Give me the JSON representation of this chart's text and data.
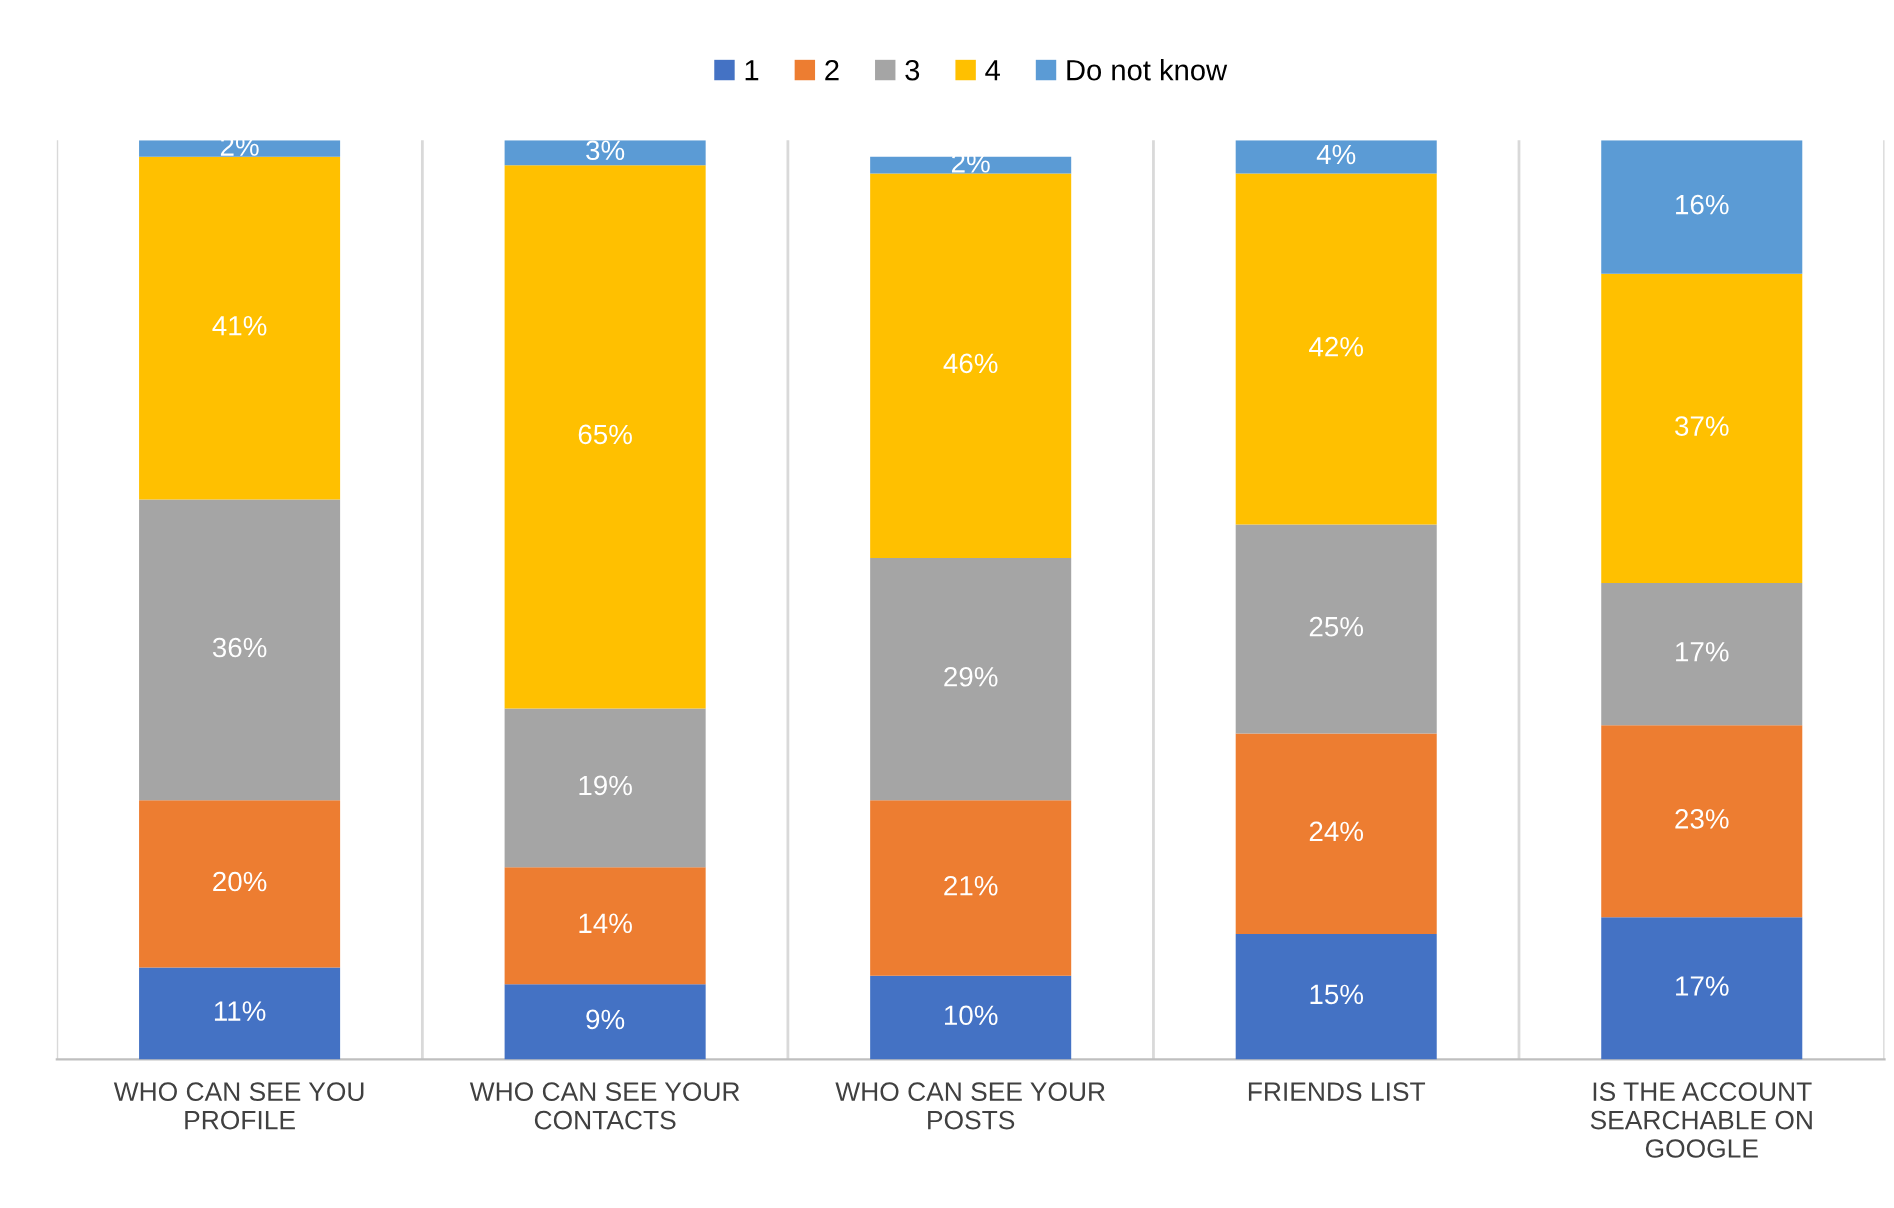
{
  "chart_data": {
    "type": "bar",
    "stacked": true,
    "categories": [
      "WHO CAN SEE YOU\nPROFILE",
      "WHO CAN SEE YOUR\nCONTACTS",
      "WHO CAN SEE YOUR\nPOSTS",
      "FRIENDS LIST",
      "IS THE ACCOUNT\nSEARCHABLE ON\nGOOGLE"
    ],
    "series": [
      {
        "name": "1",
        "color": "#4472c4",
        "values": [
          11,
          9,
          10,
          15,
          17
        ],
        "value_labels": [
          "11%",
          "9%",
          "10%",
          "15%",
          "17%"
        ]
      },
      {
        "name": "2",
        "color": "#ed7d31",
        "values": [
          20,
          14,
          21,
          24,
          23
        ],
        "value_labels": [
          "20%",
          "14%",
          "21%",
          "24%",
          "23%"
        ]
      },
      {
        "name": "3",
        "color": "#a5a5a5",
        "values": [
          36,
          19,
          29,
          25,
          17
        ],
        "value_labels": [
          "36%",
          "19%",
          "29%",
          "25%",
          "17%"
        ]
      },
      {
        "name": "4",
        "color": "#ffc000",
        "values": [
          41,
          65,
          46,
          42,
          37
        ],
        "value_labels": [
          "41%",
          "65%",
          "46%",
          "42%",
          "37%"
        ]
      },
      {
        "name": "Do not know",
        "color": "#5b9bd5",
        "values": [
          2,
          3,
          2,
          4,
          16
        ],
        "value_labels": [
          "2%",
          "3%",
          "2%",
          "4%",
          "16%"
        ]
      }
    ],
    "legend": "top",
    "grid": "x"
  }
}
